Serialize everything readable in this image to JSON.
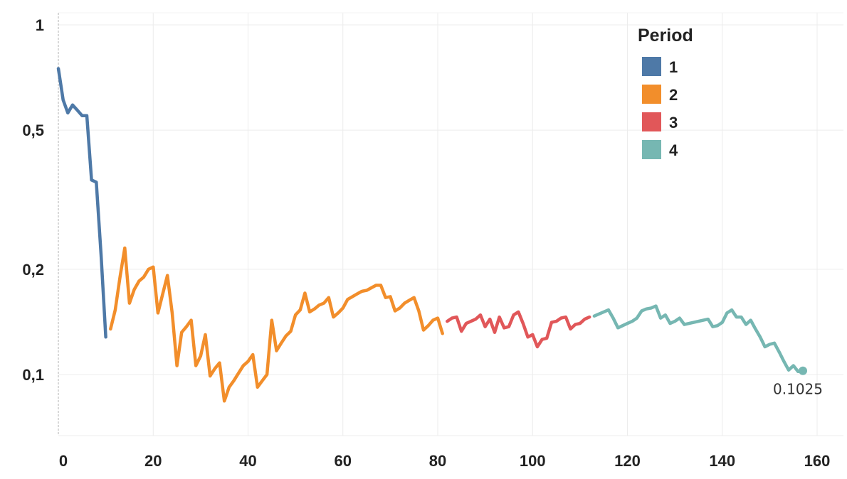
{
  "chart_data": {
    "type": "line",
    "title": "",
    "xlabel": "",
    "ylabel": "",
    "x_scale": "linear",
    "y_scale": "log",
    "xlim": [
      -1,
      162
    ],
    "ylim": [
      0.08,
      1.05
    ],
    "x_ticks": [
      0,
      20,
      40,
      60,
      80,
      100,
      120,
      140,
      160
    ],
    "x_tick_labels": [
      "0",
      "20",
      "40",
      "60",
      "80",
      "100",
      "120",
      "140",
      "160"
    ],
    "y_ticks": [
      0.1,
      0.2,
      0.5,
      1
    ],
    "y_tick_labels": [
      "0,1",
      "0,2",
      "0,5",
      "1"
    ],
    "grid": true,
    "legend": {
      "title": "Period",
      "placement": "top-right",
      "entries": [
        {
          "label": "1",
          "color": "#4e79a7"
        },
        {
          "label": "2",
          "color": "#f28e2b"
        },
        {
          "label": "3",
          "color": "#e15759"
        },
        {
          "label": "4",
          "color": "#76b7b2"
        }
      ]
    },
    "series": [
      {
        "name": "1",
        "color": "#4e79a7",
        "x": [
          0,
          1,
          2,
          3,
          4,
          5,
          6,
          7,
          8,
          9,
          10
        ],
        "y": [
          0.75,
          0.61,
          0.56,
          0.59,
          0.57,
          0.55,
          0.55,
          0.36,
          0.355,
          0.22,
          0.128
        ]
      },
      {
        "name": "2",
        "color": "#f28e2b",
        "x": [
          11,
          12,
          13,
          14,
          15,
          16,
          17,
          18,
          19,
          20,
          21,
          22,
          23,
          24,
          25,
          26,
          27,
          28,
          29,
          30,
          31,
          32,
          33,
          34,
          35,
          36,
          37,
          38,
          39,
          40,
          41,
          42,
          43,
          44,
          45,
          46,
          47,
          48,
          49,
          50,
          51,
          52,
          53,
          54,
          55,
          56,
          57,
          58,
          59,
          60,
          61,
          62,
          63,
          64,
          65,
          66,
          67,
          68,
          69,
          70,
          71,
          72,
          73,
          74,
          75,
          76,
          77,
          78,
          79,
          80,
          81
        ],
        "y": [
          0.135,
          0.153,
          0.19,
          0.23,
          0.16,
          0.175,
          0.185,
          0.19,
          0.2,
          0.203,
          0.15,
          0.17,
          0.192,
          0.15,
          0.106,
          0.132,
          0.137,
          0.143,
          0.106,
          0.113,
          0.13,
          0.099,
          0.104,
          0.108,
          0.084,
          0.092,
          0.096,
          0.101,
          0.106,
          0.109,
          0.114,
          0.092,
          0.096,
          0.1,
          0.143,
          0.117,
          0.123,
          0.129,
          0.133,
          0.148,
          0.153,
          0.171,
          0.151,
          0.154,
          0.158,
          0.16,
          0.166,
          0.146,
          0.15,
          0.155,
          0.164,
          0.167,
          0.17,
          0.173,
          0.174,
          0.177,
          0.18,
          0.18,
          0.166,
          0.167,
          0.152,
          0.155,
          0.16,
          0.163,
          0.166,
          0.152,
          0.134,
          0.138,
          0.143,
          0.145,
          0.131
        ]
      },
      {
        "name": "3",
        "color": "#e15759",
        "x": [
          82,
          83,
          84,
          85,
          86,
          87,
          88,
          89,
          90,
          91,
          92,
          93,
          94,
          95,
          96,
          97,
          98,
          99,
          100,
          101,
          102,
          103,
          104,
          105,
          106,
          107,
          108,
          109,
          110,
          111,
          112
        ],
        "y": [
          0.142,
          0.145,
          0.146,
          0.133,
          0.14,
          0.142,
          0.144,
          0.148,
          0.137,
          0.144,
          0.132,
          0.146,
          0.136,
          0.137,
          0.148,
          0.151,
          0.14,
          0.128,
          0.13,
          0.12,
          0.126,
          0.127,
          0.141,
          0.142,
          0.145,
          0.146,
          0.135,
          0.139,
          0.14,
          0.144,
          0.146
        ]
      },
      {
        "name": "4",
        "color": "#76b7b2",
        "x": [
          113,
          114,
          115,
          116,
          117,
          118,
          119,
          120,
          121,
          122,
          123,
          124,
          125,
          126,
          127,
          128,
          129,
          130,
          131,
          132,
          133,
          134,
          135,
          136,
          137,
          138,
          139,
          140,
          141,
          142,
          143,
          144,
          145,
          146,
          147,
          148,
          149,
          150,
          151,
          152,
          153,
          154,
          155,
          156,
          157
        ],
        "y": [
          0.147,
          0.149,
          0.151,
          0.153,
          0.145,
          0.136,
          0.138,
          0.14,
          0.142,
          0.145,
          0.152,
          0.154,
          0.155,
          0.157,
          0.145,
          0.148,
          0.14,
          0.142,
          0.145,
          0.139,
          0.14,
          0.141,
          0.142,
          0.143,
          0.144,
          0.137,
          0.138,
          0.141,
          0.15,
          0.153,
          0.146,
          0.146,
          0.139,
          0.143,
          0.135,
          0.128,
          0.12,
          0.122,
          0.123,
          0.116,
          0.109,
          0.103,
          0.106,
          0.102,
          0.1025
        ]
      }
    ],
    "annotations": [
      {
        "text": "0.1025",
        "x": 157,
        "y": 0.1025,
        "color": "#76b7b2"
      }
    ]
  }
}
